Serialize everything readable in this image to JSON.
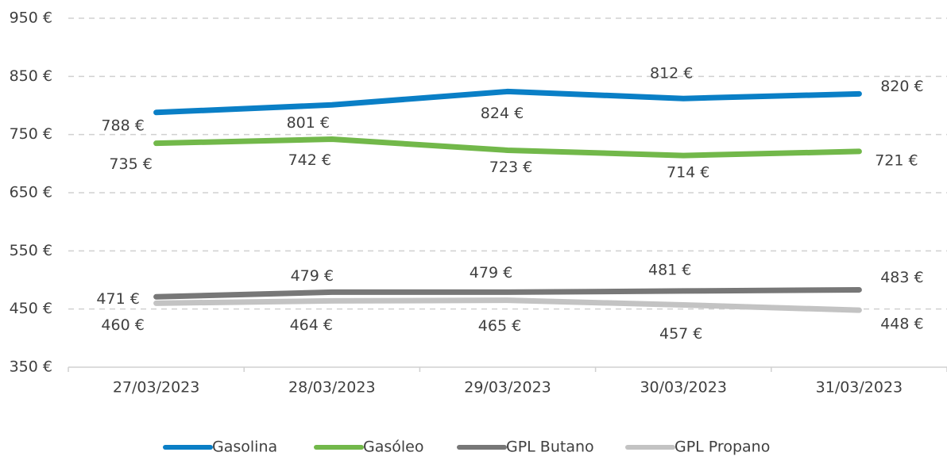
{
  "chart_data": {
    "type": "line",
    "categories": [
      "27/03/2023",
      "28/03/2023",
      "29/03/2023",
      "30/03/2023",
      "31/03/2023"
    ],
    "series": [
      {
        "name": "Gasolina",
        "color": "#0a7fc6",
        "values": [
          788,
          801,
          824,
          812,
          820
        ],
        "value_labels": [
          "788 €",
          "801 €",
          "824 €",
          "812 €",
          "820 €"
        ]
      },
      {
        "name": "Gasóleo",
        "color": "#72b84a",
        "values": [
          735,
          742,
          723,
          714,
          721
        ],
        "value_labels": [
          "735 €",
          "742 €",
          "723 €",
          "714 €",
          "721 €"
        ]
      },
      {
        "name": "GPL Butano",
        "color": "#777777",
        "values": [
          471,
          479,
          479,
          481,
          483
        ],
        "value_labels": [
          "471 €",
          "479 €",
          "479 €",
          "481 €",
          "483 €"
        ]
      },
      {
        "name": "GPL Propano",
        "color": "#c3c3c3",
        "values": [
          460,
          464,
          465,
          457,
          448
        ],
        "value_labels": [
          "460 €",
          "464 €",
          "465 €",
          "457 €",
          "448 €"
        ]
      }
    ],
    "ylim": [
      350,
      950
    ],
    "yticks": [
      {
        "value": 350,
        "label": "350 €"
      },
      {
        "value": 450,
        "label": "450 €"
      },
      {
        "value": 550,
        "label": "550 €"
      },
      {
        "value": 650,
        "label": "650 €"
      },
      {
        "value": 750,
        "label": "750 €"
      },
      {
        "value": 850,
        "label": "850 €"
      },
      {
        "value": 950,
        "label": "950 €"
      }
    ],
    "grid": true,
    "legend": "bottom"
  }
}
